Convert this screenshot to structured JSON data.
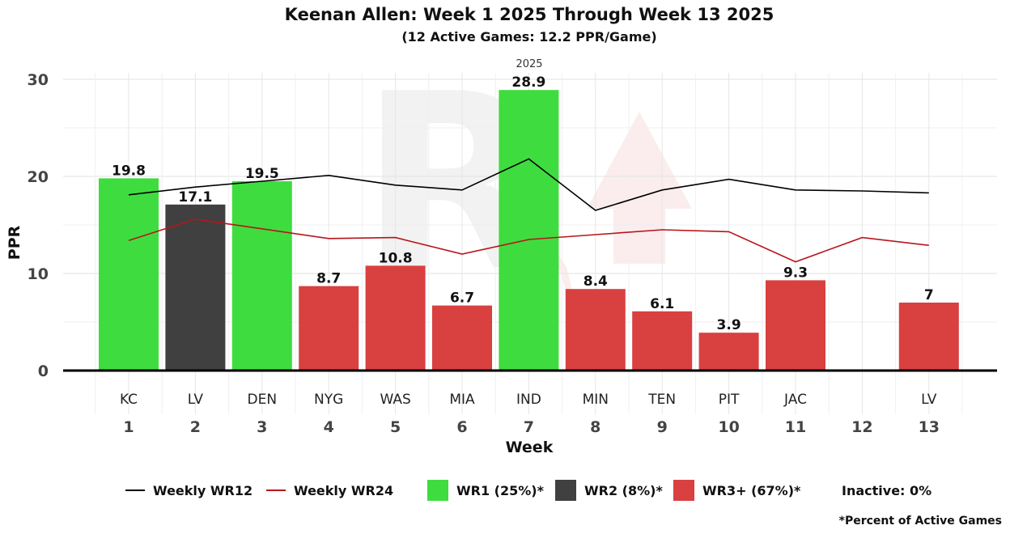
{
  "chart_data": {
    "type": "bar",
    "title": "Keenan Allen: Week 1 2025 Through Week 13 2025",
    "subtitle": "(12 Active Games: 12.2 PPR/Game)",
    "facet_label": "2025",
    "xlabel": "Week",
    "ylabel": "PPR",
    "ylim": [
      0,
      30
    ],
    "yticks": [
      0,
      10,
      20,
      30
    ],
    "grid": true,
    "weeks": [
      1,
      2,
      3,
      4,
      5,
      6,
      7,
      8,
      9,
      10,
      11,
      12,
      13
    ],
    "opponents": [
      "KC",
      "LV",
      "DEN",
      "NYG",
      "WAS",
      "MIA",
      "IND",
      "MIN",
      "TEN",
      "PIT",
      "JAC",
      "",
      "LV"
    ],
    "values": [
      19.8,
      17.1,
      19.5,
      8.7,
      10.8,
      6.7,
      28.9,
      8.4,
      6.1,
      3.9,
      9.3,
      null,
      7.0
    ],
    "value_labels": [
      "19.8",
      "17.1",
      "19.5",
      "8.7",
      "10.8",
      "6.7",
      "28.9",
      "8.4",
      "6.1",
      "3.9",
      "9.3",
      "",
      "7"
    ],
    "tiers": [
      "WR1",
      "WR2",
      "WR1",
      "WR3+",
      "WR3+",
      "WR3+",
      "WR1",
      "WR3+",
      "WR3+",
      "WR3+",
      "WR3+",
      "",
      "WR3+"
    ],
    "series": [
      {
        "name": "Weekly WR12",
        "color": "#000000",
        "values": [
          18.1,
          18.9,
          19.5,
          20.1,
          19.1,
          18.6,
          21.8,
          16.5,
          18.6,
          19.7,
          18.6,
          18.5,
          18.3
        ]
      },
      {
        "name": "Weekly WR24",
        "color": "#b8141a",
        "values": [
          13.4,
          15.6,
          14.6,
          13.6,
          13.7,
          12.0,
          13.5,
          14.0,
          14.5,
          14.3,
          11.2,
          13.7,
          12.9
        ]
      }
    ],
    "tier_colors": {
      "WR1": "#3fdc3f",
      "WR2": "#404040",
      "WR3+": "#d94040"
    },
    "legend": {
      "placement": "bottom",
      "items": [
        {
          "kind": "line",
          "label": "Weekly WR12",
          "color": "#000000"
        },
        {
          "kind": "line",
          "label": "Weekly WR24",
          "color": "#b8141a"
        },
        {
          "kind": "box",
          "label": "WR1 (25%)*",
          "color": "#3fdc3f"
        },
        {
          "kind": "box",
          "label": "WR2 (8%)*",
          "color": "#404040"
        },
        {
          "kind": "box",
          "label": "WR3+ (67%)*",
          "color": "#d94040"
        },
        {
          "kind": "text",
          "label": "Inactive: 0%"
        }
      ]
    },
    "footnote": "*Percent of Active Games"
  }
}
